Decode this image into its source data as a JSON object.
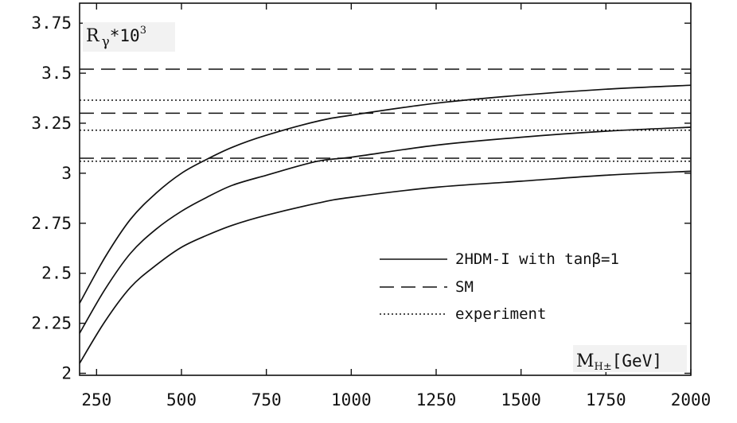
{
  "chart_data": {
    "type": "line",
    "ylabel": {
      "base": "R",
      "sub": "γ",
      "mid": "*10",
      "sup": "3"
    },
    "xlabel": {
      "base": "M",
      "sub": "H±",
      "unit": "[GeV]"
    },
    "xlim": [
      200,
      2000
    ],
    "ylim": [
      1.99,
      3.85
    ],
    "xticks": [
      250,
      500,
      750,
      1000,
      1250,
      1500,
      1750,
      2000
    ],
    "yticks": [
      2,
      2.25,
      2.5,
      2.75,
      3,
      3.25,
      3.5,
      3.75
    ],
    "xtick_labels": [
      "250",
      "500",
      "750",
      "1000",
      "1250",
      "1500",
      "1750",
      "2000"
    ],
    "ytick_labels": [
      "2",
      "2.25",
      "2.5",
      "2.75",
      "3",
      "3.25",
      "3.5",
      "3.75"
    ],
    "series": [
      {
        "name": "2HDM-I with tanβ=1",
        "style": "solid",
        "curves": [
          {
            "x": [
              200,
              275,
              350,
              425,
              500,
              575,
              650,
              750,
              900,
              1000,
              1250,
              1500,
              1750,
              2000
            ],
            "y": [
              2.35,
              2.58,
              2.77,
              2.9,
              3.0,
              3.07,
              3.13,
              3.19,
              3.26,
              3.29,
              3.35,
              3.39,
              3.42,
              3.44
            ]
          },
          {
            "x": [
              200,
              275,
              350,
              425,
              500,
              575,
              650,
              750,
              900,
              1000,
              1250,
              1500,
              1750,
              2000
            ],
            "y": [
              2.2,
              2.42,
              2.6,
              2.72,
              2.81,
              2.88,
              2.94,
              2.99,
              3.06,
              3.08,
              3.14,
              3.18,
              3.21,
              3.23
            ]
          },
          {
            "x": [
              200,
              275,
              350,
              425,
              500,
              575,
              650,
              750,
              900,
              1000,
              1250,
              1500,
              1750,
              2000
            ],
            "y": [
              2.05,
              2.26,
              2.43,
              2.54,
              2.63,
              2.69,
              2.74,
              2.79,
              2.85,
              2.88,
              2.93,
              2.96,
              2.99,
              3.01
            ]
          }
        ]
      },
      {
        "name": "SM",
        "style": "dashed",
        "hlines": [
          3.52,
          3.3,
          3.075
        ]
      },
      {
        "name": "experiment",
        "style": "dotted",
        "hlines": [
          3.365,
          3.215,
          3.06
        ]
      }
    ],
    "legend_position": "bottom-right",
    "grid": false
  }
}
